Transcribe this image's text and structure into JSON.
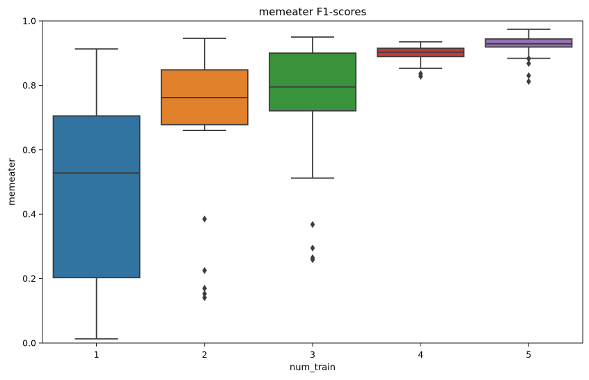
{
  "chart_data": {
    "type": "box",
    "title": "memeater F1-scores",
    "xlabel": "num_train",
    "ylabel": "memeater",
    "ylim": [
      0,
      1
    ],
    "yticks": [
      "0.0",
      "0.2",
      "0.4",
      "0.6",
      "0.8",
      "1.0"
    ],
    "grid": false,
    "legend": "none",
    "categories": [
      "1",
      "2",
      "3",
      "4",
      "5"
    ],
    "boxes": [
      {
        "category": "1",
        "whisker_low": 0.013,
        "q1": 0.203,
        "median": 0.528,
        "q3": 0.705,
        "whisker_high": 0.913,
        "outliers": [],
        "color": "#3274a1"
      },
      {
        "category": "2",
        "whisker_low": 0.66,
        "q1": 0.678,
        "median": 0.762,
        "q3": 0.848,
        "whisker_high": 0.946,
        "outliers": [
          0.385,
          0.225,
          0.17,
          0.153,
          0.141
        ],
        "color": "#e1812c"
      },
      {
        "category": "3",
        "whisker_low": 0.512,
        "q1": 0.721,
        "median": 0.795,
        "q3": 0.9,
        "whisker_high": 0.95,
        "outliers": [
          0.368,
          0.295,
          0.265,
          0.259
        ],
        "color": "#3a923a"
      },
      {
        "category": "4",
        "whisker_low": 0.853,
        "q1": 0.889,
        "median": 0.903,
        "q3": 0.915,
        "whisker_high": 0.935,
        "outliers": [
          0.836,
          0.828
        ],
        "color": "#c03d3e"
      },
      {
        "category": "5",
        "whisker_low": 0.884,
        "q1": 0.919,
        "median": 0.929,
        "q3": 0.944,
        "whisker_high": 0.974,
        "outliers": [
          0.883,
          0.868,
          0.83,
          0.812
        ],
        "color": "#9372b2"
      }
    ]
  }
}
